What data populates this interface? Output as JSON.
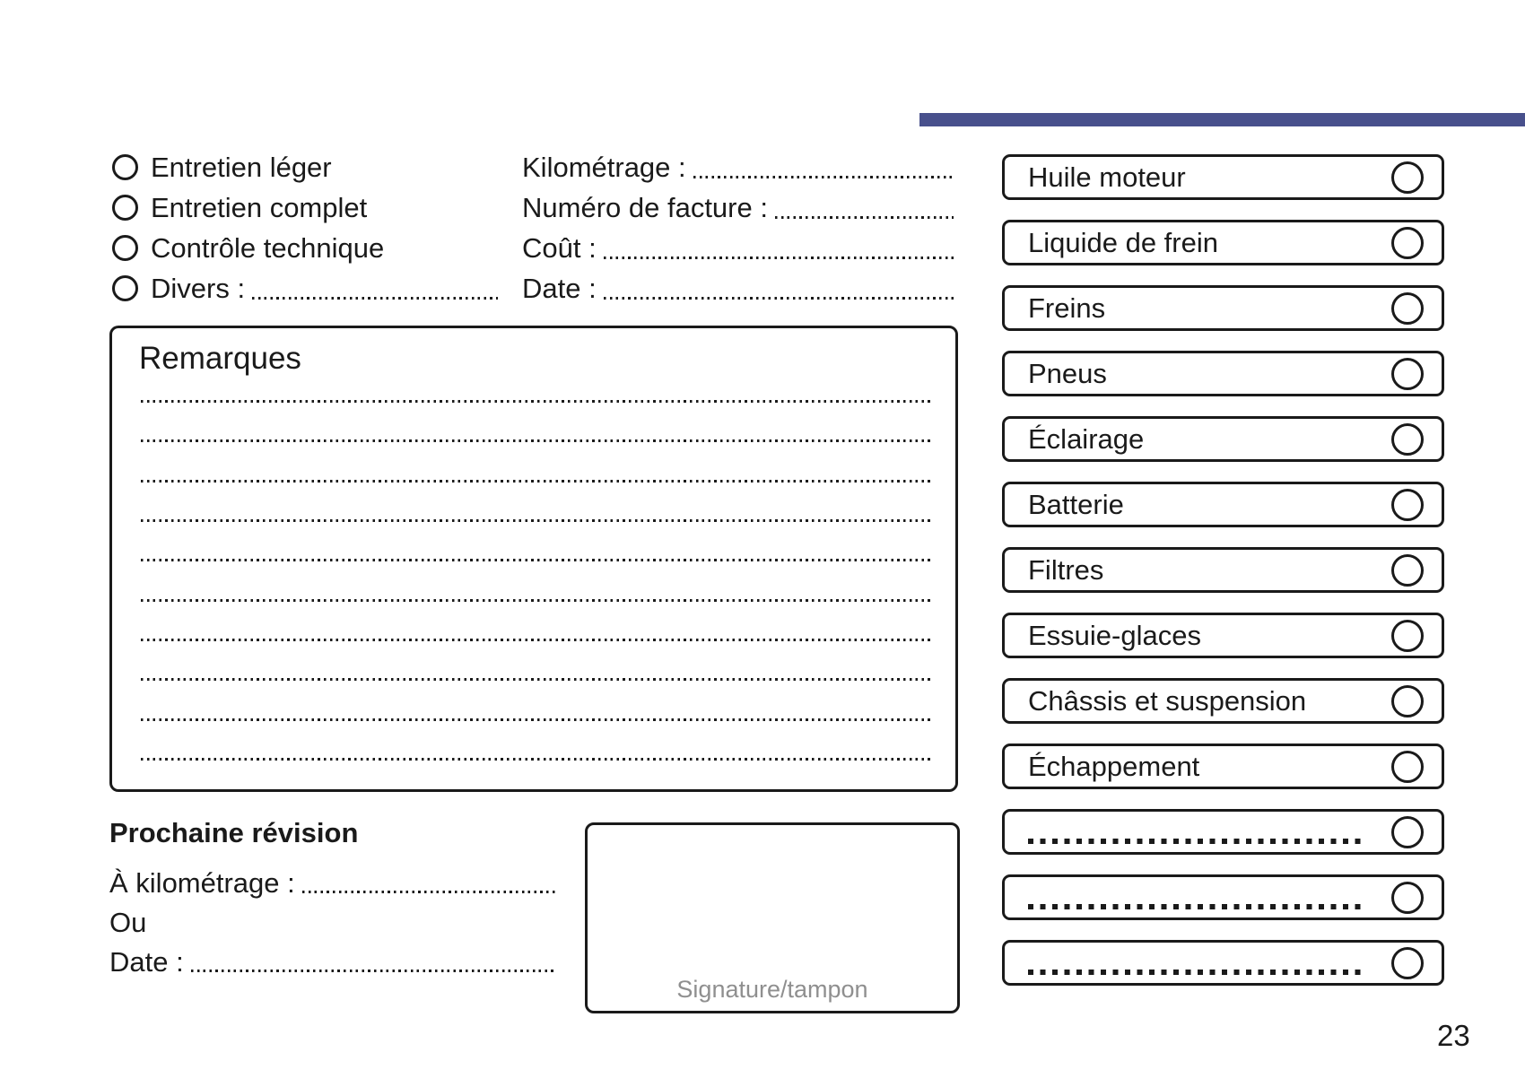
{
  "accent_color": "#48508C",
  "page_number": "23",
  "service_types": [
    {
      "label": "Entretien léger",
      "dots": false
    },
    {
      "label": "Entretien complet",
      "dots": false
    },
    {
      "label": "Contrôle technique",
      "dots": false
    },
    {
      "label": "Divers :",
      "dots": true
    }
  ],
  "invoice_fields": [
    "Kilométrage :",
    "Numéro de facture :",
    "Coût :",
    "Date :"
  ],
  "remarks": {
    "title": "Remarques",
    "lines": [
      "",
      "",
      "",
      "",
      "",
      "",
      "",
      "",
      "",
      ""
    ]
  },
  "next_service": {
    "title": "Prochaine révision",
    "fields": [
      {
        "label": "À kilométrage :",
        "dots": true
      },
      {
        "label": "Ou",
        "dots": false
      },
      {
        "label": "Date :",
        "dots": true
      }
    ]
  },
  "signature_label": "Signature/tampon",
  "checklist": [
    {
      "label": "Huile moteur",
      "blank": false
    },
    {
      "label": "Liquide de frein",
      "blank": false
    },
    {
      "label": "Freins",
      "blank": false
    },
    {
      "label": "Pneus",
      "blank": false
    },
    {
      "label": "Éclairage",
      "blank": false
    },
    {
      "label": "Batterie",
      "blank": false
    },
    {
      "label": "Filtres",
      "blank": false
    },
    {
      "label": "Essuie-glaces",
      "blank": false
    },
    {
      "label": "Châssis et suspension",
      "blank": false
    },
    {
      "label": "Échappement",
      "blank": false
    },
    {
      "label": "",
      "blank": true
    },
    {
      "label": "",
      "blank": true
    },
    {
      "label": "",
      "blank": true
    }
  ]
}
